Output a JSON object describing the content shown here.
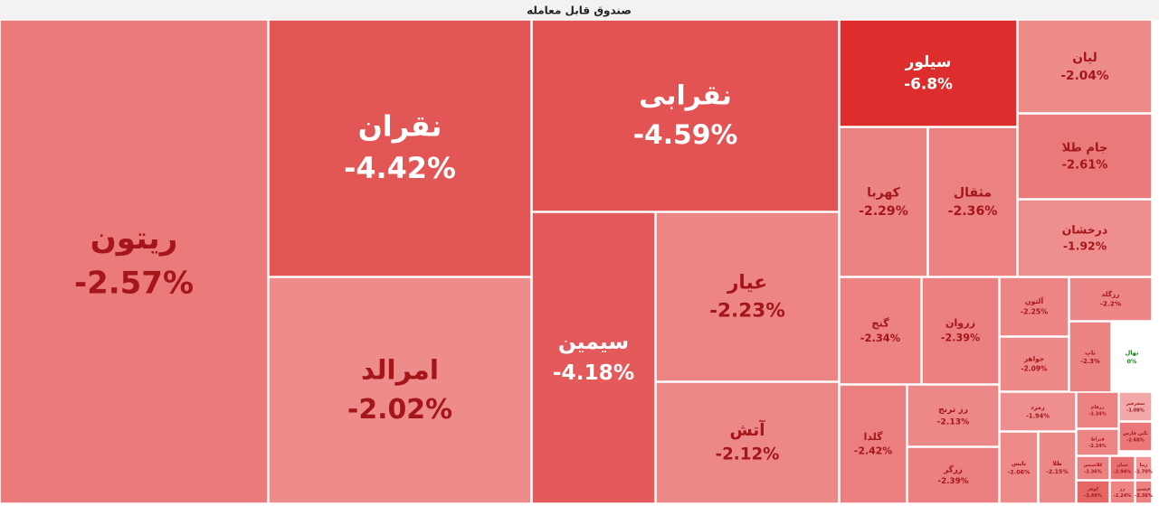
{
  "chart_data": {
    "type": "treemap",
    "title": "صندوق قابل معامله",
    "categories": [
      "ریتون",
      "نقران",
      "امرالد",
      "نقرابی",
      "سیمین",
      "عیار",
      "آتش",
      "سیلور",
      "لیان",
      "جام طلا",
      "درخشان",
      "کهربا",
      "مثقال",
      "گنج",
      "زروان",
      "گلدا",
      "رز ترنج",
      "زرگر",
      "آلتون",
      "جواهر",
      "رزگلد",
      "ناب",
      "نهال",
      "زمرد",
      "زرفام",
      "سحرخیز",
      "نگین فارس",
      "تابش",
      "طلا",
      "قیراط",
      "کلاسیس",
      "جمان",
      "زیتا",
      "کوهر",
      "زر",
      "عیسی"
    ],
    "values": [
      -2.57,
      -4.42,
      -2.02,
      -4.59,
      -4.18,
      -2.23,
      -2.12,
      -6.8,
      -2.04,
      -2.61,
      -1.92,
      -2.29,
      -2.36,
      -2.34,
      -2.39,
      -2.42,
      -2.13,
      -2.39,
      -2.25,
      -2.09,
      -2.2,
      -2.3,
      0,
      -1.94,
      -2.34,
      -1.08,
      -2.68,
      -2.06,
      -2.15,
      -2.24,
      -2.36,
      -2.94,
      -1.7,
      -3.49,
      -2.24,
      -2.36
    ],
    "value_labels": [
      "-2.57%",
      "-4.42%",
      "-2.02%",
      "-4.59%",
      "-4.18%",
      "-2.23%",
      "-2.12%",
      "-6.8%",
      "-2.04%",
      "-2.61%",
      "-1.92%",
      "-2.29%",
      "-2.36%",
      "-2.34%",
      "-2.39%",
      "-2.42%",
      "-2.13%",
      "-2.39%",
      "-2.25%",
      "-2.09%",
      "-2.2%",
      "-2.3%",
      "0%",
      "-1.94%",
      "-2.34%",
      "-1.08%",
      "-2.68%",
      "-2.06%",
      "-2.15%",
      "-2.24%",
      "-2.36%",
      "-2.94%",
      "-1.70%",
      "-3.49%",
      "-2.24%",
      "-2.36%"
    ]
  }
}
